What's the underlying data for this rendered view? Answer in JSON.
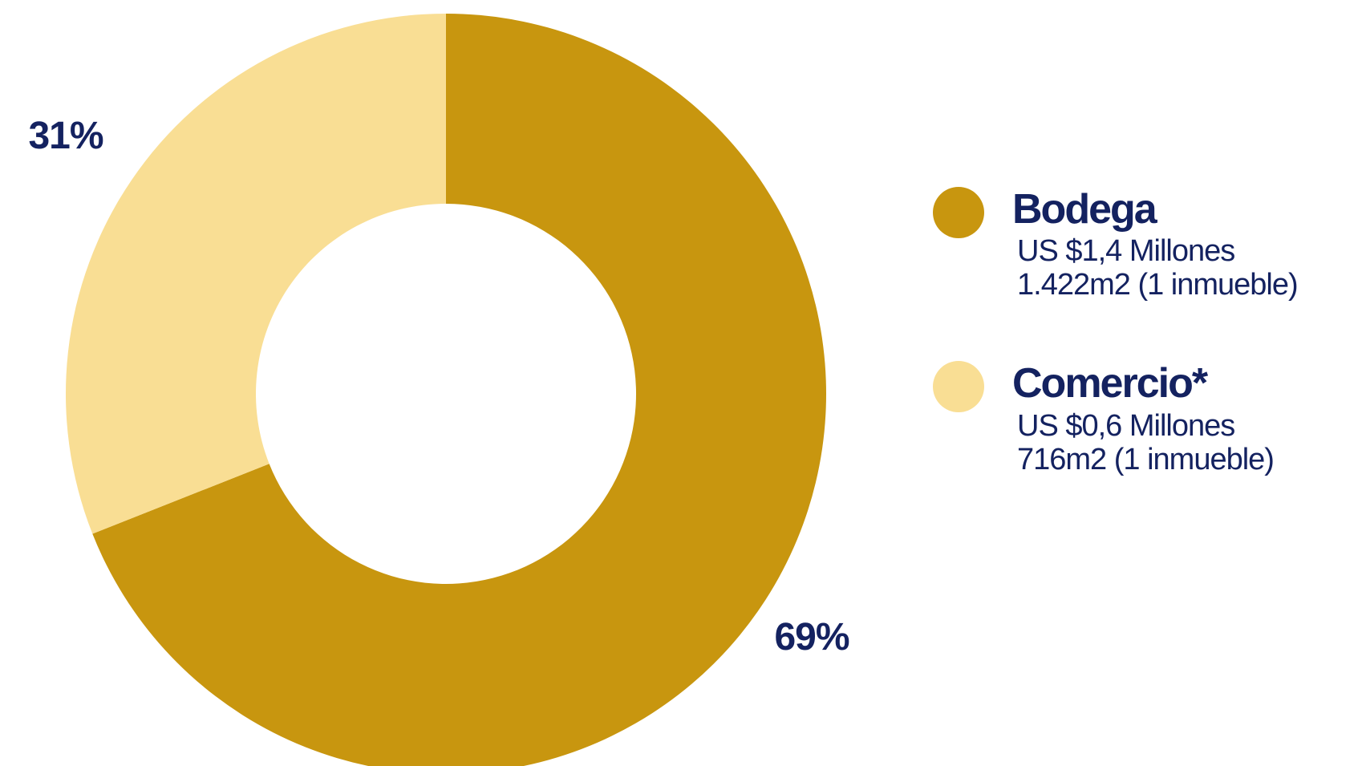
{
  "chart_data": {
    "type": "pie",
    "style": "donut",
    "categories": [
      "Bodega",
      "Comercio*"
    ],
    "values": [
      69,
      31
    ],
    "value_labels": [
      "69%",
      "31%"
    ],
    "colors": [
      "#C8960F",
      "#F9DE94"
    ],
    "label_color": "#142260",
    "legend_placement": "right",
    "legend": [
      {
        "name": "Bodega",
        "color": "#C8960F",
        "detail_1": "US $1,4 Millones",
        "detail_2": "1.422m2 (1 inmueble)"
      },
      {
        "name": "Comercio*",
        "color": "#F9DE94",
        "detail_1": "US $0,6 Millones",
        "detail_2": "716m2 (1 inmueble)"
      }
    ]
  }
}
